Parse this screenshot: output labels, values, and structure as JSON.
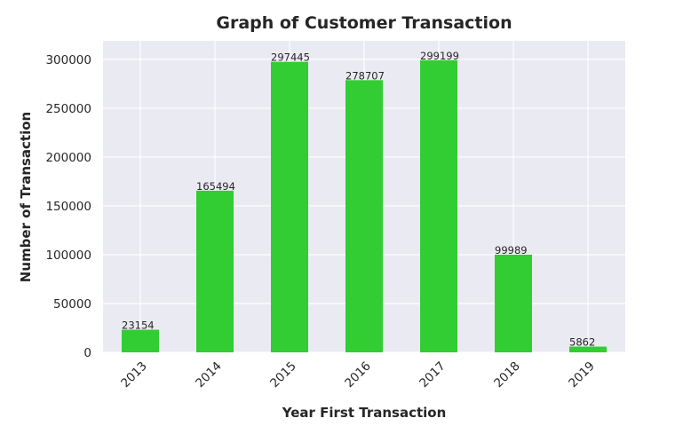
{
  "chart_data": {
    "type": "bar",
    "title": "Graph of Customer Transaction",
    "xlabel": "Year First Transaction",
    "ylabel": "Number of Transaction",
    "categories": [
      "2013",
      "2014",
      "2015",
      "2016",
      "2017",
      "2018",
      "2019"
    ],
    "values": [
      23154,
      165494,
      297445,
      278707,
      299199,
      99989,
      5862
    ],
    "data_labels": [
      "23154",
      "165494",
      "297445",
      "278707",
      "299199",
      "99989",
      "5862"
    ],
    "ylim": [
      0,
      319000
    ],
    "yticks": [
      0,
      50000,
      100000,
      150000,
      200000,
      250000,
      300000
    ],
    "ytick_labels": [
      "0",
      "50000",
      "100000",
      "150000",
      "200000",
      "250000",
      "300000"
    ],
    "bar_color": "#32cd32",
    "plot_background": "#eaeaf2",
    "grid": true,
    "xtick_rotation": "45 degrees"
  }
}
